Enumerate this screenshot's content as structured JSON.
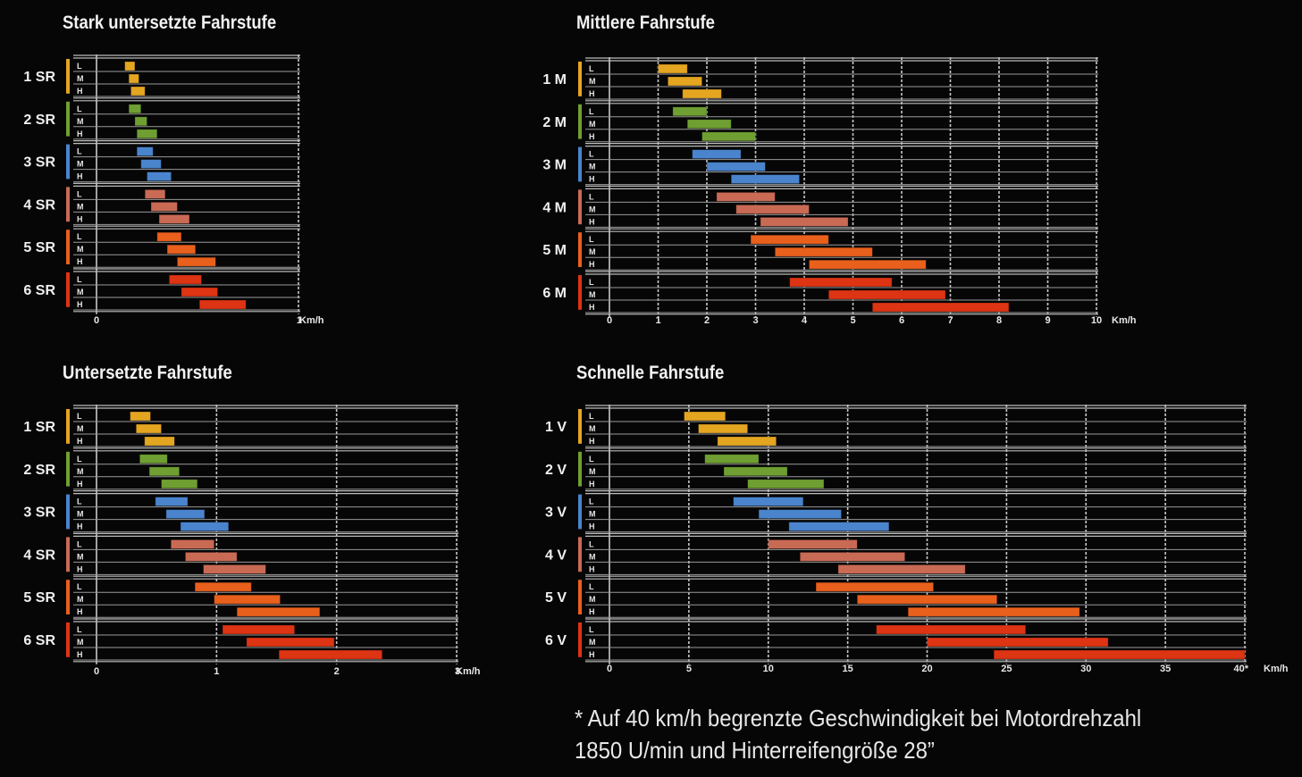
{
  "colors": {
    "yellow": "#e4a521",
    "green": "#6f9f32",
    "blue": "#4a84cc",
    "salmon": "#c96a55",
    "orange": "#e8601c",
    "red": "#dd3413"
  },
  "band_labels": [
    "L",
    "M",
    "H"
  ],
  "footnote": {
    "line1": "* Auf 40 km/h begrenzte Geschwindigkeit bei Motordrehzahl",
    "line2": "1850 U/min und Hinterreifengröße 28”"
  },
  "chart_data": [
    {
      "type": "bar",
      "title": "Stark untersetzte Fahrstufe",
      "unit": "Km/h",
      "xlim": [
        0,
        1
      ],
      "ticks": [
        0,
        1
      ],
      "tick_labels": [
        "0",
        "1"
      ],
      "unit_after_last_tick": true,
      "gears": [
        {
          "label": "1 SR",
          "color": "yellow",
          "bars": [
            [
              0.14,
              0.19
            ],
            [
              0.16,
              0.21
            ],
            [
              0.17,
              0.24
            ]
          ]
        },
        {
          "label": "2 SR",
          "color": "green",
          "bars": [
            [
              0.16,
              0.22
            ],
            [
              0.19,
              0.25
            ],
            [
              0.2,
              0.3
            ]
          ]
        },
        {
          "label": "3 SR",
          "color": "blue",
          "bars": [
            [
              0.2,
              0.28
            ],
            [
              0.22,
              0.32
            ],
            [
              0.25,
              0.37
            ]
          ]
        },
        {
          "label": "4 SR",
          "color": "salmon",
          "bars": [
            [
              0.24,
              0.34
            ],
            [
              0.27,
              0.4
            ],
            [
              0.31,
              0.46
            ]
          ]
        },
        {
          "label": "5 SR",
          "color": "orange",
          "bars": [
            [
              0.3,
              0.42
            ],
            [
              0.35,
              0.49
            ],
            [
              0.4,
              0.59
            ]
          ]
        },
        {
          "label": "6 SR",
          "color": "red",
          "bars": [
            [
              0.36,
              0.52
            ],
            [
              0.42,
              0.6
            ],
            [
              0.51,
              0.74
            ]
          ]
        }
      ]
    },
    {
      "type": "bar",
      "title": "Mittlere Fahrstufe",
      "unit": "Km/h",
      "xlim": [
        0,
        10
      ],
      "ticks": [
        0,
        1,
        2,
        3,
        4,
        5,
        6,
        7,
        8,
        9,
        10
      ],
      "tick_labels": [
        "0",
        "1",
        "2",
        "3",
        "4",
        "5",
        "6",
        "7",
        "8",
        "9",
        "10"
      ],
      "unit_after_last_tick": false,
      "gears": [
        {
          "label": "1 M",
          "color": "yellow",
          "bars": [
            [
              1.0,
              1.6
            ],
            [
              1.2,
              1.9
            ],
            [
              1.5,
              2.3
            ]
          ]
        },
        {
          "label": "2 M",
          "color": "green",
          "bars": [
            [
              1.3,
              2.0
            ],
            [
              1.6,
              2.5
            ],
            [
              1.9,
              3.0
            ]
          ]
        },
        {
          "label": "3 M",
          "color": "blue",
          "bars": [
            [
              1.7,
              2.7
            ],
            [
              2.0,
              3.2
            ],
            [
              2.5,
              3.9
            ]
          ]
        },
        {
          "label": "4 M",
          "color": "salmon",
          "bars": [
            [
              2.2,
              3.4
            ],
            [
              2.6,
              4.1
            ],
            [
              3.1,
              4.9
            ]
          ]
        },
        {
          "label": "5 M",
          "color": "orange",
          "bars": [
            [
              2.9,
              4.5
            ],
            [
              3.4,
              5.4
            ],
            [
              4.1,
              6.5
            ]
          ]
        },
        {
          "label": "6 M",
          "color": "red",
          "bars": [
            [
              3.7,
              5.8
            ],
            [
              4.5,
              6.9
            ],
            [
              5.4,
              8.2
            ]
          ]
        }
      ]
    },
    {
      "type": "bar",
      "title": "Untersetzte Fahrstufe",
      "unit": "Km/h",
      "xlim": [
        0,
        3
      ],
      "ticks": [
        0,
        1,
        2,
        3
      ],
      "tick_labels": [
        "0",
        "1",
        "2",
        "3"
      ],
      "unit_after_last_tick": true,
      "gears": [
        {
          "label": "1 SR",
          "color": "yellow",
          "bars": [
            [
              0.28,
              0.45
            ],
            [
              0.33,
              0.54
            ],
            [
              0.4,
              0.65
            ]
          ]
        },
        {
          "label": "2 SR",
          "color": "green",
          "bars": [
            [
              0.36,
              0.59
            ],
            [
              0.44,
              0.69
            ],
            [
              0.54,
              0.84
            ]
          ]
        },
        {
          "label": "3 SR",
          "color": "blue",
          "bars": [
            [
              0.49,
              0.76
            ],
            [
              0.58,
              0.9
            ],
            [
              0.7,
              1.1
            ]
          ]
        },
        {
          "label": "4 SR",
          "color": "salmon",
          "bars": [
            [
              0.62,
              0.98
            ],
            [
              0.74,
              1.17
            ],
            [
              0.89,
              1.41
            ]
          ]
        },
        {
          "label": "5 SR",
          "color": "orange",
          "bars": [
            [
              0.82,
              1.29
            ],
            [
              0.98,
              1.53
            ],
            [
              1.17,
              1.86
            ]
          ]
        },
        {
          "label": "6 SR",
          "color": "red",
          "bars": [
            [
              1.05,
              1.65
            ],
            [
              1.25,
              1.98
            ],
            [
              1.52,
              2.38
            ]
          ]
        }
      ]
    },
    {
      "type": "bar",
      "title": "Schnelle Fahrstufe",
      "unit": "Km/h",
      "xlim": [
        0,
        40
      ],
      "ticks": [
        0,
        5,
        10,
        15,
        20,
        25,
        30,
        35,
        40
      ],
      "tick_labels": [
        "0",
        "5",
        "10",
        "15",
        "20",
        "25",
        "30",
        "35",
        "40*"
      ],
      "unit_after_last_tick": true,
      "gears": [
        {
          "label": "1 V",
          "color": "yellow",
          "bars": [
            [
              4.7,
              7.3
            ],
            [
              5.6,
              8.7
            ],
            [
              6.8,
              10.5
            ]
          ]
        },
        {
          "label": "2 V",
          "color": "green",
          "bars": [
            [
              6.0,
              9.4
            ],
            [
              7.2,
              11.2
            ],
            [
              8.7,
              13.5
            ]
          ]
        },
        {
          "label": "3 V",
          "color": "blue",
          "bars": [
            [
              7.8,
              12.2
            ],
            [
              9.4,
              14.6
            ],
            [
              11.3,
              17.6
            ]
          ]
        },
        {
          "label": "4 V",
          "color": "salmon",
          "bars": [
            [
              10.0,
              15.6
            ],
            [
              12.0,
              18.6
            ],
            [
              14.4,
              22.4
            ]
          ]
        },
        {
          "label": "5 V",
          "color": "orange",
          "bars": [
            [
              13.0,
              20.4
            ],
            [
              15.6,
              24.4
            ],
            [
              18.8,
              29.6
            ]
          ]
        },
        {
          "label": "6 V",
          "color": "red",
          "bars": [
            [
              16.8,
              26.2
            ],
            [
              20.0,
              31.4
            ],
            [
              24.2,
              40.0
            ]
          ]
        }
      ]
    }
  ]
}
